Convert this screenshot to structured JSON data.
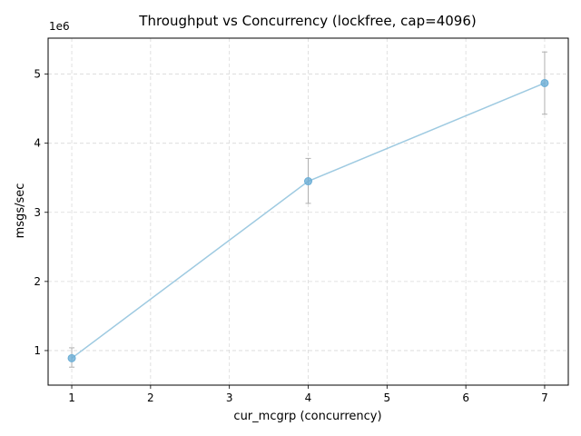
{
  "chart_data": {
    "type": "line",
    "title": "Throughput vs Concurrency (lockfree, cap=4096)",
    "xlabel": "cur_mcgrp (concurrency)",
    "ylabel": "msgs/sec",
    "y_offset_label": "1e6",
    "xlim": [
      0.7,
      7.3
    ],
    "ylim": [
      500000,
      5520000
    ],
    "xticks": [
      1,
      2,
      3,
      4,
      5,
      6,
      7
    ],
    "yticks": [
      1000000,
      2000000,
      3000000,
      4000000,
      5000000
    ],
    "ytick_labels": [
      "1",
      "2",
      "3",
      "4",
      "5"
    ],
    "grid": true,
    "series": [
      {
        "x": [
          1,
          4,
          7
        ],
        "y": [
          890000,
          3450000,
          4870000
        ],
        "yerr_low": [
          760000,
          3130000,
          4420000
        ],
        "yerr_high": [
          1040000,
          3780000,
          5320000
        ],
        "color": "#9ecae1",
        "marker_color": "#6baed6",
        "errorbar_color": "#b0b0b0"
      }
    ]
  }
}
